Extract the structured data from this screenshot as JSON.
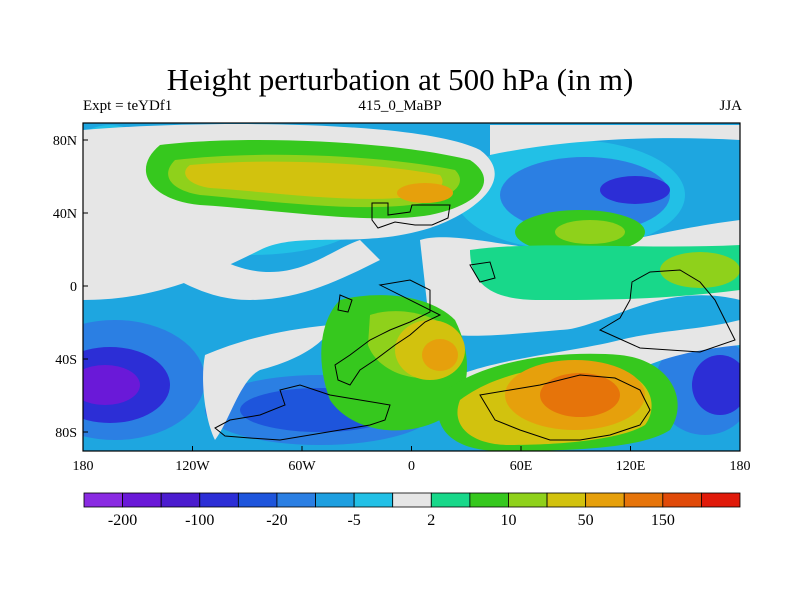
{
  "figure": {
    "title": "Height perturbation at 500 hPa (in m)",
    "left_string": "Expt = teYDf1",
    "center_string": "415_0_MaBP",
    "right_string": "JJA"
  },
  "axes": {
    "x_ticks": [
      "180",
      "120W",
      "60W",
      "0",
      "60E",
      "120E",
      "180"
    ],
    "y_ticks": [
      "80N",
      "40N",
      "0",
      "40S",
      "80S"
    ]
  },
  "colorbar": {
    "colors": [
      "#8a2be2",
      "#6a19d8",
      "#4b1ccf",
      "#2c2ed6",
      "#1e55dc",
      "#2b7fe3",
      "#1e9fe0",
      "#22c0e6",
      "#e6e6e6",
      "#18d88a",
      "#36c81e",
      "#8fd11b",
      "#d2c20e",
      "#e6a00c",
      "#e6740a",
      "#e04a09",
      "#e01a0a"
    ],
    "labels": [
      {
        "text": "-200",
        "after_box": 1
      },
      {
        "text": "-100",
        "after_box": 3
      },
      {
        "text": "-20",
        "after_box": 5
      },
      {
        "text": "-5",
        "after_box": 7
      },
      {
        "text": "2",
        "after_box": 9
      },
      {
        "text": "10",
        "after_box": 11
      },
      {
        "text": "50",
        "after_box": 13
      },
      {
        "text": "150",
        "after_box": 15
      }
    ]
  }
}
